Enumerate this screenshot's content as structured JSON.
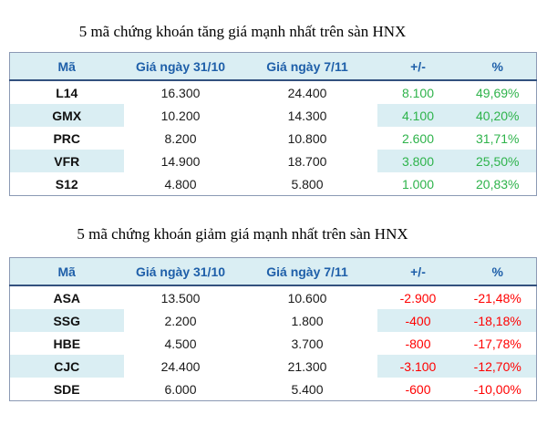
{
  "colors": {
    "up": "#2eb34b",
    "down": "#ff0000",
    "highlight": "#daeef3",
    "header_text": "#1e5fa9",
    "header_rule": "#33517e",
    "border": "#8b99b4"
  },
  "tables": [
    {
      "title": "5 mã chứng khoán tăng giá mạnh nhất trên sàn HNX",
      "direction": "up",
      "columns": [
        "Mã",
        "Giá ngày 31/10",
        "Giá ngày 7/11",
        "+/-",
        "%"
      ],
      "rows": [
        {
          "code": "L14",
          "price_31_10": "16.300",
          "price_7_11": "24.400",
          "change": "8.100",
          "percent": "49,69%"
        },
        {
          "code": "GMX",
          "price_31_10": "10.200",
          "price_7_11": "14.300",
          "change": "4.100",
          "percent": "40,20%"
        },
        {
          "code": "PRC",
          "price_31_10": "8.200",
          "price_7_11": "10.800",
          "change": "2.600",
          "percent": "31,71%"
        },
        {
          "code": "VFR",
          "price_31_10": "14.900",
          "price_7_11": "18.700",
          "change": "3.800",
          "percent": "25,50%"
        },
        {
          "code": "S12",
          "price_31_10": "4.800",
          "price_7_11": "5.800",
          "change": "1.000",
          "percent": "20,83%"
        }
      ]
    },
    {
      "title": "5 mã chứng khoán giảm giá mạnh nhất trên sàn HNX",
      "direction": "down",
      "columns": [
        "Mã",
        "Giá ngày 31/10",
        "Giá ngày 7/11",
        "+/-",
        "%"
      ],
      "rows": [
        {
          "code": "ASA",
          "price_31_10": "13.500",
          "price_7_11": "10.600",
          "change": "-2.900",
          "percent": "-21,48%"
        },
        {
          "code": "SSG",
          "price_31_10": "2.200",
          "price_7_11": "1.800",
          "change": "-400",
          "percent": "-18,18%"
        },
        {
          "code": "HBE",
          "price_31_10": "4.500",
          "price_7_11": "3.700",
          "change": "-800",
          "percent": "-17,78%"
        },
        {
          "code": "CJC",
          "price_31_10": "24.400",
          "price_7_11": "21.300",
          "change": "-3.100",
          "percent": "-12,70%"
        },
        {
          "code": "SDE",
          "price_31_10": "6.000",
          "price_7_11": "5.400",
          "change": "-600",
          "percent": "-10,00%"
        }
      ]
    }
  ]
}
